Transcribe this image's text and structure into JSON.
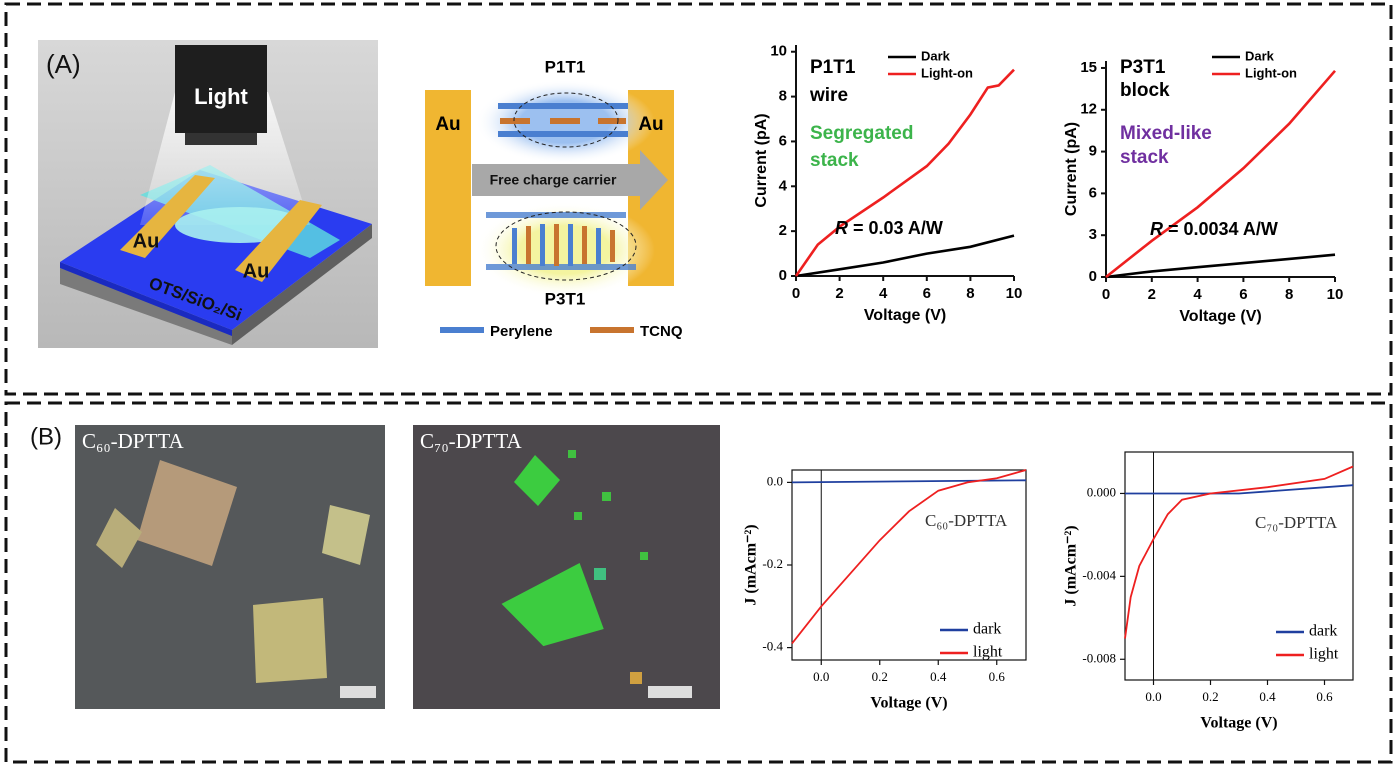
{
  "panels": [
    {
      "label": "(A)"
    },
    {
      "label": "(B)"
    }
  ],
  "device": {
    "light": "Light",
    "electrode_left": "Au",
    "electrode_right": "Au",
    "substrate": "OTS/SiO₂/Si"
  },
  "diagram": {
    "top": "P1T1",
    "bottom": "P3T1",
    "electrode_left": "Au",
    "electrode_right": "Au",
    "arrow": "Free charge carrier",
    "legend": [
      {
        "name": "Perylene",
        "color": "#4a7fd0"
      },
      {
        "name": "TCNQ",
        "color": "#c8742e"
      }
    ]
  },
  "micrographs": [
    {
      "label": "C₆₀-DPTTA"
    },
    {
      "label": "C₇₀-DPTTA"
    }
  ],
  "chart_data": [
    {
      "type": "line",
      "xlabel": "Voltage (V)",
      "ylabel": "Current (pA)",
      "frame": "axes",
      "xlim": [
        0,
        10
      ],
      "ylim": [
        0,
        10.3
      ],
      "xticks": [
        0,
        2,
        4,
        6,
        8,
        10
      ],
      "yticks": [
        0,
        2,
        4,
        6,
        8,
        10
      ],
      "legend": "upper right",
      "annotations": [
        {
          "text": "P1T1",
          "color": "#000000"
        },
        {
          "text": "wire",
          "color": "#000000"
        },
        {
          "text": "Segregated",
          "color": "#3cb44b"
        },
        {
          "text": "stack",
          "color": "#3cb44b"
        }
      ],
      "responsivity": {
        "symbol": "R",
        "text": "= 0.03 A/W"
      },
      "series": [
        {
          "name": "Dark",
          "color": "#000000",
          "x": [
            0,
            2,
            4,
            6,
            8,
            10
          ],
          "values": [
            0,
            0.3,
            0.6,
            1.0,
            1.3,
            1.8
          ]
        },
        {
          "name": "Light-on",
          "color": "#ee2020",
          "x": [
            0,
            1,
            2,
            4,
            6,
            7,
            8,
            8.8,
            9.3,
            10
          ],
          "values": [
            0,
            1.4,
            2.2,
            3.5,
            4.9,
            5.9,
            7.2,
            8.4,
            8.5,
            9.2
          ]
        }
      ]
    },
    {
      "type": "line",
      "xlabel": "Voltage (V)",
      "ylabel": "Current (pA)",
      "frame": "axes",
      "xlim": [
        0,
        10
      ],
      "ylim": [
        0,
        15.5
      ],
      "xticks": [
        0,
        2,
        4,
        6,
        8,
        10
      ],
      "yticks": [
        0,
        3,
        6,
        9,
        12,
        15
      ],
      "legend": "upper right",
      "annotations": [
        {
          "text": "P3T1",
          "color": "#000000"
        },
        {
          "text": "block",
          "color": "#000000"
        },
        {
          "text": "Mixed-like",
          "color": "#7030a0"
        },
        {
          "text": "stack",
          "color": "#7030a0"
        }
      ],
      "responsivity": {
        "symbol": "R",
        "text": "= 0.0034 A/W"
      },
      "series": [
        {
          "name": "Dark",
          "color": "#000000",
          "x": [
            0,
            2,
            4,
            6,
            8,
            10
          ],
          "values": [
            0,
            0.4,
            0.7,
            1.0,
            1.3,
            1.6
          ]
        },
        {
          "name": "Light-on",
          "color": "#ee2020",
          "x": [
            0,
            2,
            4,
            6,
            8,
            10
          ],
          "values": [
            0,
            2.6,
            5.0,
            7.8,
            11,
            14.8
          ]
        }
      ]
    },
    {
      "type": "line",
      "xlabel": "Voltage (V)",
      "ylabel": "J (mAcm⁻²)",
      "frame": "box",
      "vline": 0,
      "xlim": [
        -0.1,
        0.7
      ],
      "ylim": [
        -0.43,
        0.03
      ],
      "xticks": [
        {
          "value": 0,
          "label": "0.0"
        },
        0.2,
        0.4,
        0.6
      ],
      "yticks": [
        {
          "value": 0,
          "label": "0.0"
        },
        -0.2,
        -0.4
      ],
      "legend": "lower right",
      "annotations": [
        {
          "text": "C₆₀-DPTTA",
          "color": "#333333"
        }
      ],
      "series": [
        {
          "name": "dark",
          "color": "#1f3f9f",
          "x": [
            -0.1,
            0.7
          ],
          "values": [
            0,
            0.005
          ]
        },
        {
          "name": "light",
          "color": "#ee2020",
          "x": [
            -0.1,
            0,
            0.1,
            0.2,
            0.3,
            0.4,
            0.5,
            0.6,
            0.7
          ],
          "values": [
            -0.39,
            -0.3,
            -0.22,
            -0.14,
            -0.07,
            -0.02,
            0,
            0.01,
            0.03
          ]
        }
      ]
    },
    {
      "type": "line",
      "xlabel": "Voltage (V)",
      "ylabel": "J (mAcm⁻²)",
      "frame": "box",
      "vline": 0,
      "xlim": [
        -0.1,
        0.7
      ],
      "ylim": [
        -0.009,
        0.002
      ],
      "xticks": [
        {
          "value": 0,
          "label": "0.0"
        },
        0.2,
        0.4,
        0.6
      ],
      "yticks": [
        {
          "value": 0,
          "label": "0.000"
        },
        -0.004,
        -0.008
      ],
      "legend": "lower right",
      "annotations": [
        {
          "text": "C₇₀-DPTTA",
          "color": "#333333"
        }
      ],
      "series": [
        {
          "name": "dark",
          "color": "#1f3f9f",
          "x": [
            -0.1,
            0.3,
            0.7
          ],
          "values": [
            0,
            0,
            0.0004
          ]
        },
        {
          "name": "light",
          "color": "#ee2020",
          "x": [
            -0.1,
            -0.08,
            -0.05,
            0,
            0.05,
            0.1,
            0.2,
            0.4,
            0.6,
            0.7
          ],
          "values": [
            -0.007,
            -0.005,
            -0.0035,
            -0.0022,
            -0.001,
            -0.0003,
            0,
            0.0003,
            0.0007,
            0.0013
          ]
        }
      ]
    }
  ]
}
